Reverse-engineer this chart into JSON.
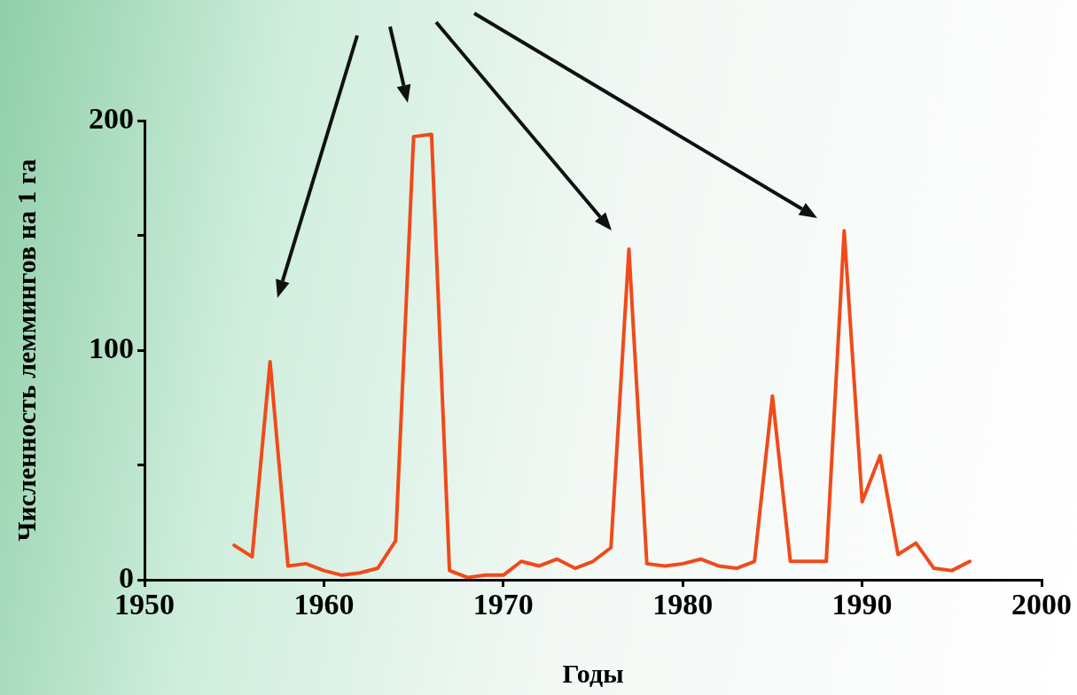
{
  "chart_data": {
    "type": "line",
    "xlabel": "Годы",
    "ylabel": "Численность леммингов на 1 га",
    "x": [
      1955,
      1956,
      1957,
      1958,
      1959,
      1960,
      1961,
      1962,
      1963,
      1964,
      1965,
      1966,
      1967,
      1968,
      1969,
      1970,
      1971,
      1972,
      1973,
      1974,
      1975,
      1976,
      1977,
      1978,
      1979,
      1980,
      1981,
      1982,
      1983,
      1984,
      1985,
      1986,
      1987,
      1988,
      1989,
      1990,
      1991,
      1992,
      1993,
      1994,
      1995,
      1996
    ],
    "series": [
      {
        "color": "#f04a1a",
        "values": [
          15,
          10,
          95,
          6,
          7,
          4,
          2,
          3,
          5,
          17,
          193,
          194,
          4,
          1,
          2,
          2,
          8,
          6,
          9,
          5,
          8,
          14,
          144,
          7,
          6,
          7,
          9,
          6,
          5,
          8,
          80,
          8,
          8,
          8,
          152,
          34,
          54,
          11,
          16,
          5,
          4,
          8
        ]
      }
    ],
    "xlim": [
      1950,
      2000
    ],
    "xticks": [
      1950,
      1960,
      1970,
      1980,
      1990,
      2000
    ],
    "ylim": [
      0,
      200
    ],
    "yticks": [
      0,
      {
        "value": 50,
        "label": null
      },
      100,
      {
        "value": 150,
        "label": null
      },
      200
    ],
    "grid": false,
    "legend": false,
    "marker": "none",
    "line_style": "solid"
  }
}
